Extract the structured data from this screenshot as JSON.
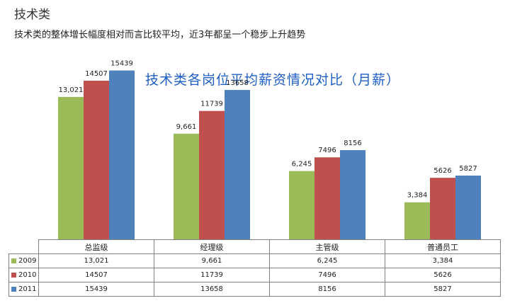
{
  "header": {
    "section_title": "技术类",
    "subtitle": "技术类的整体增长幅度相对而言比较平均，近3年都呈一个稳步上升趋势"
  },
  "chart_data": {
    "type": "bar",
    "title": "技术类各岗位平均薪资情况对比（月薪）",
    "categories": [
      "总监级",
      "经理级",
      "主管级",
      "普通员工"
    ],
    "series": [
      {
        "name": "2009",
        "color": "#9bbb59",
        "values": [
          13021,
          9661,
          6245,
          3384
        ],
        "labels": [
          "13,021",
          "9,661",
          "6,245",
          "3,384"
        ]
      },
      {
        "name": "2010",
        "color": "#c0504d",
        "values": [
          14507,
          11739,
          7496,
          5626
        ],
        "labels": [
          "14507",
          "11739",
          "7496",
          "5626"
        ]
      },
      {
        "name": "2011",
        "color": "#4f81bd",
        "values": [
          15439,
          13658,
          8156,
          5827
        ],
        "labels": [
          "15439",
          "13658",
          "8156",
          "5827"
        ]
      }
    ],
    "ylim": [
      0,
      18000
    ],
    "grid": false,
    "legend": "data-table"
  }
}
